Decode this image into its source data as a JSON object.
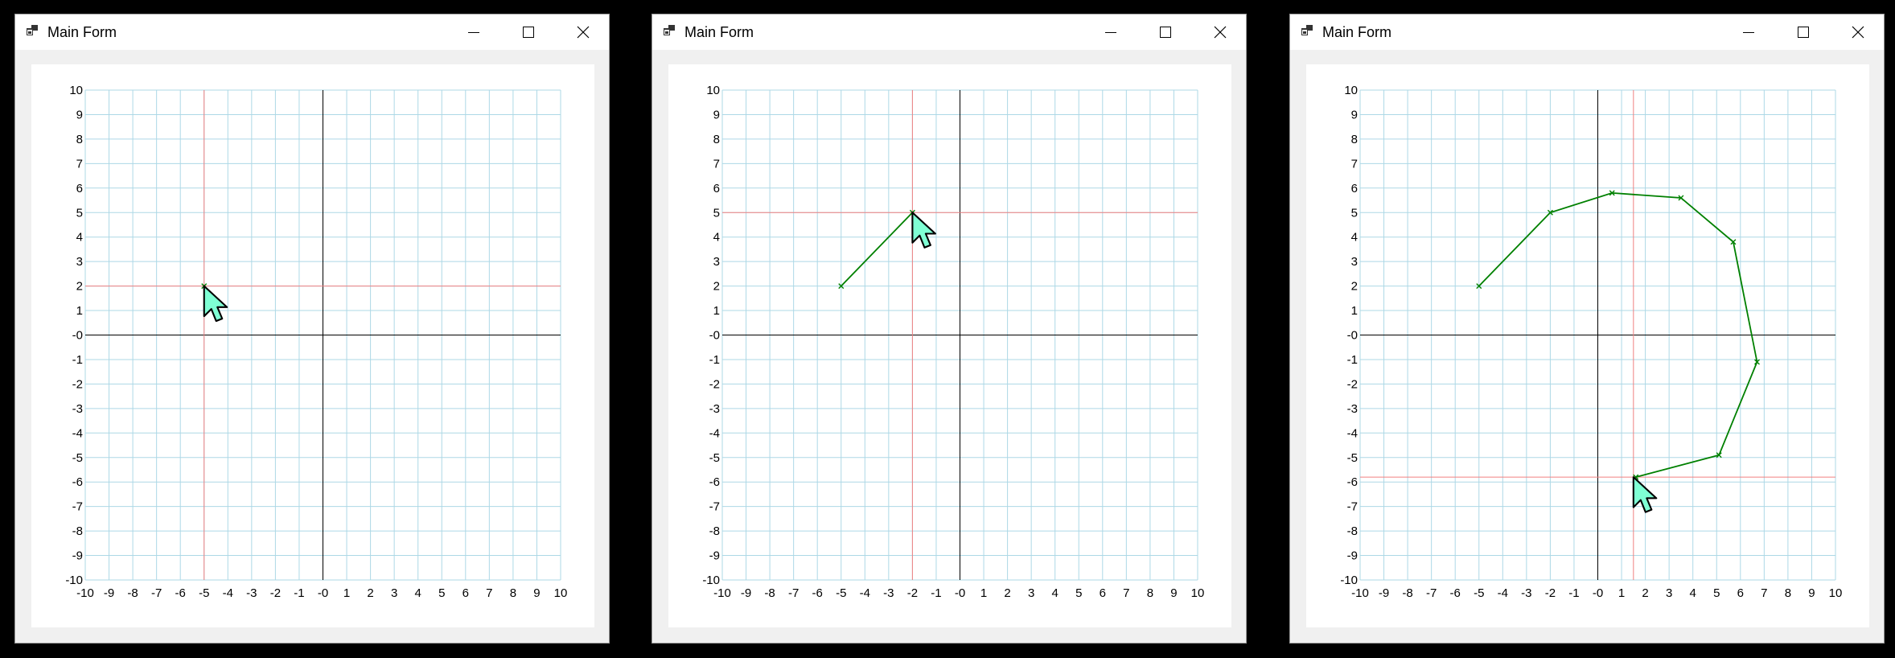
{
  "colors": {
    "grid": "#add8e6",
    "axis": "#000000",
    "crosshair": "#f08080",
    "polyline": "#008000",
    "cursor": "#7fffd4"
  },
  "icons": {
    "app": "app-window-icon",
    "minimize": "minimize-icon",
    "maximize": "maximize-icon",
    "close": "close-icon",
    "cursor": "mouse-cursor-icon"
  },
  "windows": [
    {
      "title": "Main Form",
      "chart_data": {
        "type": "line",
        "xlim": [
          -10,
          10
        ],
        "ylim": [
          -10,
          10
        ],
        "grid": true,
        "x_ticks": [
          "-10",
          "-9",
          "-8",
          "-7",
          "-6",
          "-5",
          "-4",
          "-3",
          "-2",
          "-1",
          "-0",
          "1",
          "2",
          "3",
          "4",
          "5",
          "6",
          "7",
          "8",
          "9",
          "10"
        ],
        "y_ticks": [
          "10",
          "9",
          "8",
          "7",
          "6",
          "5",
          "4",
          "3",
          "2",
          "1",
          "-0",
          "-1",
          "-2",
          "-3",
          "-4",
          "-5",
          "-6",
          "-7",
          "-8",
          "-9",
          "-10"
        ],
        "points": [
          [
            -5,
            2
          ]
        ],
        "cursor": [
          -5,
          2
        ]
      }
    },
    {
      "title": "Main Form",
      "chart_data": {
        "type": "line",
        "xlim": [
          -10,
          10
        ],
        "ylim": [
          -10,
          10
        ],
        "grid": true,
        "x_ticks": [
          "-10",
          "-9",
          "-8",
          "-7",
          "-6",
          "-5",
          "-4",
          "-3",
          "-2",
          "-1",
          "-0",
          "1",
          "2",
          "3",
          "4",
          "5",
          "6",
          "7",
          "8",
          "9",
          "10"
        ],
        "y_ticks": [
          "10",
          "9",
          "8",
          "7",
          "6",
          "5",
          "4",
          "3",
          "2",
          "1",
          "-0",
          "-1",
          "-2",
          "-3",
          "-4",
          "-5",
          "-6",
          "-7",
          "-8",
          "-9",
          "-10"
        ],
        "points": [
          [
            -5,
            2
          ],
          [
            -2,
            5
          ]
        ],
        "cursor": [
          -2,
          5
        ]
      }
    },
    {
      "title": "Main Form",
      "chart_data": {
        "type": "line",
        "xlim": [
          -10,
          10
        ],
        "ylim": [
          -10,
          10
        ],
        "grid": true,
        "x_ticks": [
          "-10",
          "-9",
          "-8",
          "-7",
          "-6",
          "-5",
          "-4",
          "-3",
          "-2",
          "-1",
          "-0",
          "1",
          "2",
          "3",
          "4",
          "5",
          "6",
          "7",
          "8",
          "9",
          "10"
        ],
        "y_ticks": [
          "10",
          "9",
          "8",
          "7",
          "6",
          "5",
          "4",
          "3",
          "2",
          "1",
          "-0",
          "-1",
          "-2",
          "-3",
          "-4",
          "-5",
          "-6",
          "-7",
          "-8",
          "-9",
          "-10"
        ],
        "points": [
          [
            -5,
            2
          ],
          [
            -2,
            5
          ],
          [
            0.6,
            5.8
          ],
          [
            3.5,
            5.6
          ],
          [
            5.7,
            3.8
          ],
          [
            6.7,
            -1.1
          ],
          [
            5.1,
            -4.9
          ],
          [
            1.6,
            -5.8
          ]
        ],
        "cursor": [
          1.5,
          -5.8
        ]
      }
    }
  ]
}
